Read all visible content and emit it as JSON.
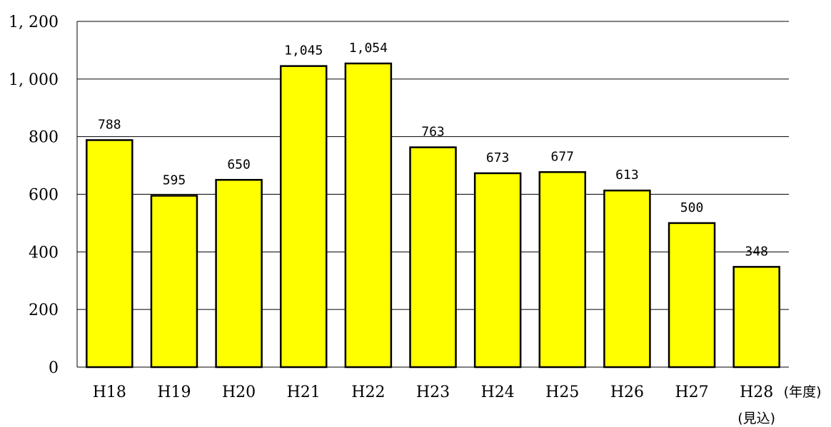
{
  "chart_data": {
    "type": "bar",
    "categories": [
      "H18",
      "H19",
      "H20",
      "H21",
      "H22",
      "H23",
      "H24",
      "H25",
      "H26",
      "H27",
      "H28"
    ],
    "values": [
      788,
      595,
      650,
      1045,
      1054,
      763,
      673,
      677,
      613,
      500,
      348
    ],
    "data_labels": [
      "788",
      "595",
      "650",
      "1,045",
      "1,054",
      "763",
      "673",
      "677",
      "613",
      "500",
      "348"
    ],
    "y_ticks": [
      0,
      200,
      400,
      600,
      800,
      1000,
      1200
    ],
    "y_tick_labels": [
      "0",
      "200",
      "400",
      "600",
      "800",
      "1, 000",
      "1, 200"
    ],
    "ylim": [
      0,
      1200
    ],
    "x_unit_label": "(年度)",
    "last_category_note": "(見込)",
    "grid": true,
    "legend": false,
    "bar_color": "#ffff00",
    "bar_edge_color": "#000000",
    "grid_color": "#000000"
  }
}
